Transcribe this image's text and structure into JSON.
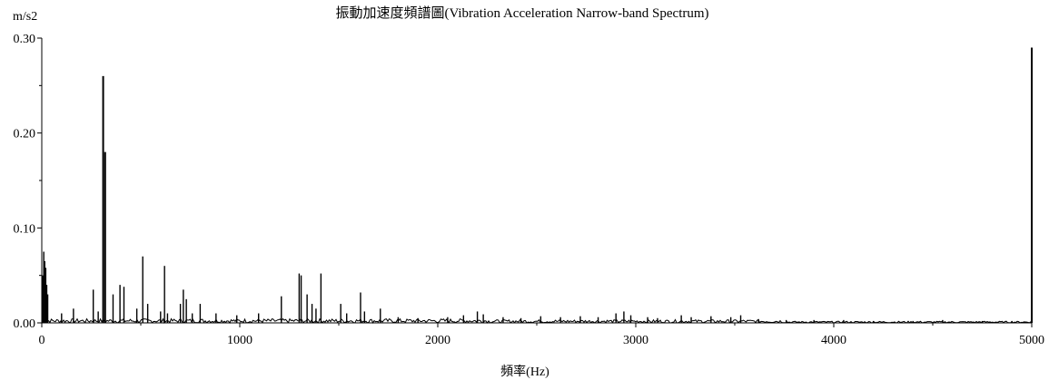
{
  "chart_data": {
    "type": "bar",
    "title": "振動加速度頻譜圖(Vibration Acceleration Narrow-band Spectrum)",
    "ylabel": "m/s2",
    "xlabel": "頻率(Hz)",
    "xlim": [
      0,
      5000
    ],
    "ylim": [
      0,
      0.3
    ],
    "xticks": [
      0,
      1000,
      2000,
      3000,
      4000,
      5000
    ],
    "xtick_labels": [
      "0",
      "1000",
      "2000",
      "3000",
      "4000",
      "5000"
    ],
    "yticks": [
      0,
      0.1,
      0.2,
      0.3
    ],
    "ytick_labels": [
      "0.00",
      "0.10",
      "0.20",
      "0.30"
    ],
    "grid": false,
    "legend": "none",
    "line_color": "#000000",
    "peaks": [
      {
        "x": 5,
        "y": 0.05
      },
      {
        "x": 10,
        "y": 0.075
      },
      {
        "x": 15,
        "y": 0.065
      },
      {
        "x": 20,
        "y": 0.058
      },
      {
        "x": 25,
        "y": 0.04
      },
      {
        "x": 30,
        "y": 0.03
      },
      {
        "x": 100,
        "y": 0.01
      },
      {
        "x": 160,
        "y": 0.015
      },
      {
        "x": 260,
        "y": 0.035
      },
      {
        "x": 285,
        "y": 0.012
      },
      {
        "x": 310,
        "y": 0.26
      },
      {
        "x": 320,
        "y": 0.18
      },
      {
        "x": 360,
        "y": 0.03
      },
      {
        "x": 395,
        "y": 0.04
      },
      {
        "x": 415,
        "y": 0.038
      },
      {
        "x": 480,
        "y": 0.015
      },
      {
        "x": 510,
        "y": 0.07
      },
      {
        "x": 535,
        "y": 0.02
      },
      {
        "x": 600,
        "y": 0.012
      },
      {
        "x": 620,
        "y": 0.06
      },
      {
        "x": 635,
        "y": 0.01
      },
      {
        "x": 700,
        "y": 0.02
      },
      {
        "x": 715,
        "y": 0.035
      },
      {
        "x": 730,
        "y": 0.025
      },
      {
        "x": 760,
        "y": 0.01
      },
      {
        "x": 800,
        "y": 0.02
      },
      {
        "x": 880,
        "y": 0.01
      },
      {
        "x": 985,
        "y": 0.008
      },
      {
        "x": 1095,
        "y": 0.01
      },
      {
        "x": 1210,
        "y": 0.028
      },
      {
        "x": 1300,
        "y": 0.052
      },
      {
        "x": 1310,
        "y": 0.05
      },
      {
        "x": 1340,
        "y": 0.03
      },
      {
        "x": 1365,
        "y": 0.02
      },
      {
        "x": 1385,
        "y": 0.015
      },
      {
        "x": 1410,
        "y": 0.052
      },
      {
        "x": 1510,
        "y": 0.02
      },
      {
        "x": 1540,
        "y": 0.01
      },
      {
        "x": 1610,
        "y": 0.032
      },
      {
        "x": 1630,
        "y": 0.012
      },
      {
        "x": 1710,
        "y": 0.015
      },
      {
        "x": 1800,
        "y": 0.006
      },
      {
        "x": 1900,
        "y": 0.005
      },
      {
        "x": 2050,
        "y": 0.006
      },
      {
        "x": 2130,
        "y": 0.008
      },
      {
        "x": 2200,
        "y": 0.012
      },
      {
        "x": 2230,
        "y": 0.009
      },
      {
        "x": 2330,
        "y": 0.006
      },
      {
        "x": 2420,
        "y": 0.005
      },
      {
        "x": 2520,
        "y": 0.007
      },
      {
        "x": 2620,
        "y": 0.006
      },
      {
        "x": 2720,
        "y": 0.007
      },
      {
        "x": 2810,
        "y": 0.006
      },
      {
        "x": 2900,
        "y": 0.01
      },
      {
        "x": 2940,
        "y": 0.012
      },
      {
        "x": 2975,
        "y": 0.008
      },
      {
        "x": 3060,
        "y": 0.006
      },
      {
        "x": 3110,
        "y": 0.005
      },
      {
        "x": 3230,
        "y": 0.008
      },
      {
        "x": 3280,
        "y": 0.006
      },
      {
        "x": 3380,
        "y": 0.007
      },
      {
        "x": 3480,
        "y": 0.006
      },
      {
        "x": 3530,
        "y": 0.008
      },
      {
        "x": 3620,
        "y": 0.004
      },
      {
        "x": 3760,
        "y": 0.003
      },
      {
        "x": 3900,
        "y": 0.003
      },
      {
        "x": 4050,
        "y": 0.003
      },
      {
        "x": 4200,
        "y": 0.002
      },
      {
        "x": 4400,
        "y": 0.002
      },
      {
        "x": 4550,
        "y": 0.003
      },
      {
        "x": 4750,
        "y": 0.002
      },
      {
        "x": 4900,
        "y": 0.002
      },
      {
        "x": 5000,
        "y": 0.29
      }
    ]
  }
}
